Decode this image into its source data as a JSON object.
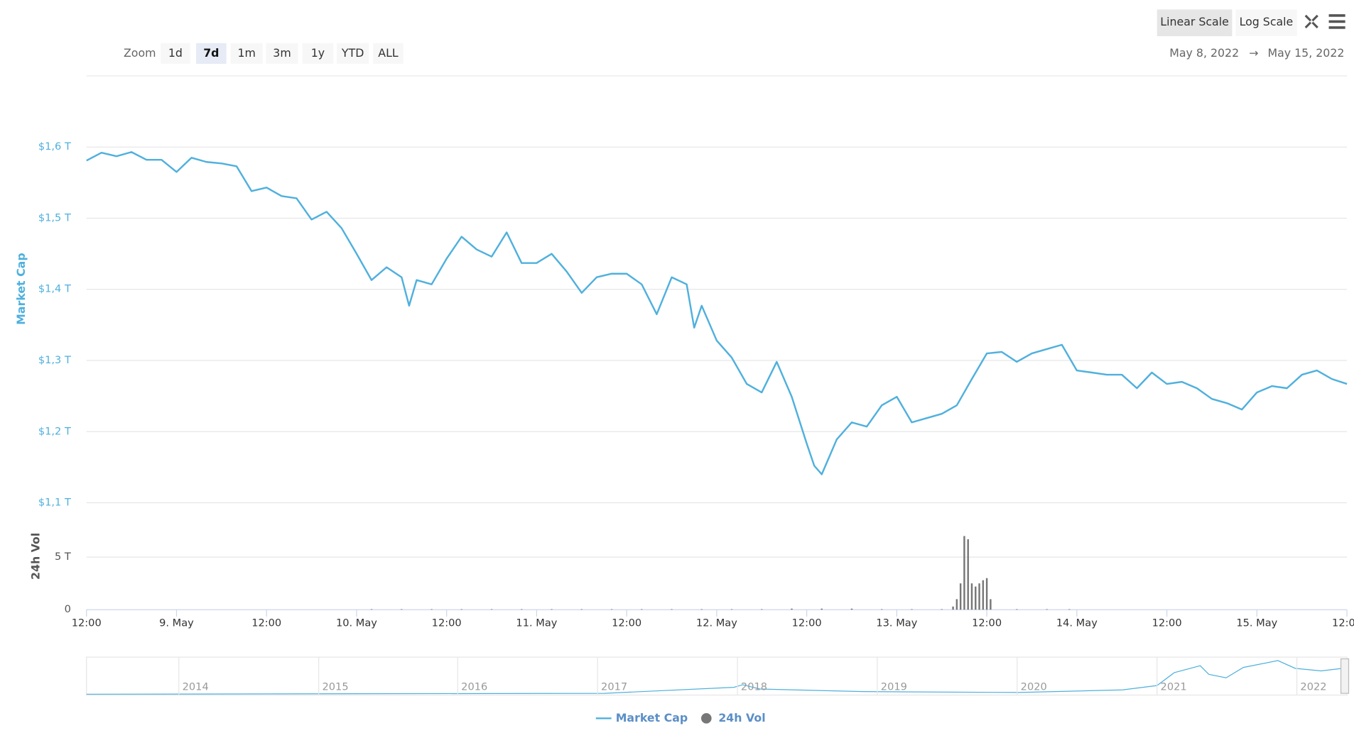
{
  "toolbar": {
    "zoom_label": "Zoom",
    "zoom_buttons": [
      "1d",
      "7d",
      "1m",
      "3m",
      "1y",
      "YTD",
      "ALL"
    ],
    "selected_zoom": 1,
    "scale_buttons": [
      "Linear Scale",
      "Log Scale"
    ],
    "selected_scale": 0,
    "date_from": "May 8, 2022",
    "arrow": "→",
    "date_to": "May 15, 2022"
  },
  "chart_data": [
    {
      "type": "line",
      "y_label": "Market Cap",
      "grid": true,
      "x": [
        0,
        2,
        4,
        6,
        8,
        10,
        12,
        14,
        16,
        18,
        20,
        22,
        24,
        26,
        28,
        30,
        32,
        34,
        36,
        38,
        40,
        42,
        43,
        44,
        46,
        48,
        50,
        52,
        54,
        56,
        58,
        60,
        62,
        64,
        66,
        68,
        70,
        72,
        74,
        76,
        78,
        80,
        81,
        82,
        84,
        86,
        88,
        90,
        92,
        94,
        96,
        97,
        98,
        100,
        102,
        104,
        106,
        108,
        110,
        112,
        114,
        116,
        118,
        120,
        122,
        124,
        126,
        128,
        130,
        132,
        134,
        136,
        138,
        140,
        142,
        144,
        146,
        148,
        150,
        152,
        154,
        156,
        158,
        160,
        162,
        164,
        166,
        168
      ],
      "xlim": [
        0,
        168
      ],
      "series": [
        {
          "name": "Market Cap",
          "color": "#4fb0dd",
          "values": [
            1.581,
            1.592,
            1.587,
            1.593,
            1.582,
            1.582,
            1.565,
            1.585,
            1.579,
            1.577,
            1.573,
            1.538,
            1.543,
            1.531,
            1.528,
            1.498,
            1.509,
            1.486,
            1.45,
            1.413,
            1.431,
            1.417,
            1.377,
            1.413,
            1.407,
            1.443,
            1.474,
            1.456,
            1.446,
            1.48,
            1.437,
            1.437,
            1.45,
            1.425,
            1.395,
            1.417,
            1.422,
            1.422,
            1.407,
            1.365,
            1.417,
            1.407,
            1.346,
            1.377,
            1.328,
            1.304,
            1.267,
            1.255,
            1.298,
            1.249,
            1.183,
            1.152,
            1.14,
            1.189,
            1.213,
            1.207,
            1.237,
            1.249,
            1.213,
            1.219,
            1.225,
            1.237,
            1.274,
            1.31,
            1.312,
            1.298,
            1.31,
            1.316,
            1.322,
            1.286,
            1.283,
            1.28,
            1.28,
            1.261,
            1.283,
            1.267,
            1.27,
            1.261,
            1.246,
            1.24,
            1.231,
            1.255,
            1.264,
            1.261,
            1.28,
            1.286,
            1.274,
            1.267
          ]
        }
      ],
      "ylim": [
        1.1,
        1.7
      ],
      "yticks": [
        {
          "value": 1.1,
          "label": "$1,1 T"
        },
        {
          "value": 1.2,
          "label": "$1,2 T"
        },
        {
          "value": 1.3,
          "label": "$1,3 T"
        },
        {
          "value": 1.4,
          "label": "$1,4 T"
        },
        {
          "value": 1.5,
          "label": "$1,5 T"
        },
        {
          "value": 1.6,
          "label": "$1,6 T"
        }
      ]
    },
    {
      "type": "bar",
      "y_label": "24h Vol",
      "x": [
        38,
        42,
        46,
        50,
        54,
        58,
        62,
        66,
        70,
        74,
        78,
        82,
        86,
        90,
        94,
        98,
        102,
        106,
        110,
        114,
        115.5,
        116,
        116.5,
        117,
        117.5,
        118,
        118.5,
        119,
        119.5,
        120,
        120.5,
        124,
        128,
        131
      ],
      "xlim": [
        0,
        168
      ],
      "series": [
        {
          "name": "24h Vol",
          "color": "#777777",
          "values": [
            0.05,
            0.05,
            0.05,
            0.05,
            0.05,
            0.05,
            0.05,
            0.05,
            0.05,
            0.05,
            0.05,
            0.05,
            0.05,
            0.05,
            0.1,
            0.1,
            0.1,
            0.05,
            0.05,
            0.05,
            0.3,
            1.0,
            2.5,
            7.0,
            6.7,
            2.5,
            2.2,
            2.5,
            2.8,
            3.0,
            1.0,
            0.05,
            0.05,
            0.05
          ]
        }
      ],
      "ylim": [
        0,
        10
      ],
      "yticks": [
        0,
        {
          "value": 5,
          "label": "5 T"
        }
      ],
      "xticks": [
        {
          "value": 0,
          "label": "12:00"
        },
        {
          "value": 12,
          "label": "9. May"
        },
        {
          "value": 24,
          "label": "12:00"
        },
        {
          "value": 36,
          "label": "10. May"
        },
        {
          "value": 48,
          "label": "12:00"
        },
        {
          "value": 60,
          "label": "11. May"
        },
        {
          "value": 72,
          "label": "12:00"
        },
        {
          "value": 84,
          "label": "12. May"
        },
        {
          "value": 96,
          "label": "12:00"
        },
        {
          "value": 108,
          "label": "13. May"
        },
        {
          "value": 120,
          "label": "12:00"
        },
        {
          "value": 132,
          "label": "14. May"
        },
        {
          "value": 144,
          "label": "12:00"
        },
        {
          "value": 156,
          "label": "15. May"
        },
        {
          "value": 168,
          "label": "12:00"
        }
      ]
    }
  ],
  "navigator": {
    "labels": [
      "2014",
      "2015",
      "2016",
      "2017",
      "2018",
      "2019",
      "2020",
      "2021",
      "2022"
    ]
  }
}
